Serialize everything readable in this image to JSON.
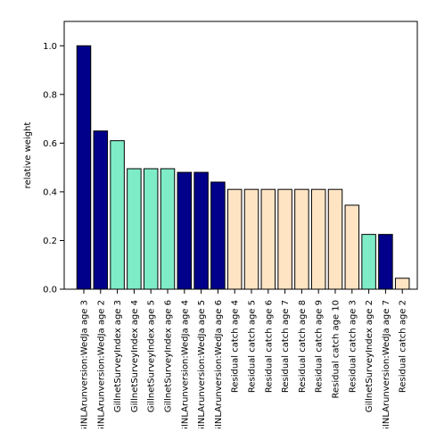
{
  "chart_data": {
    "type": "bar",
    "title": "",
    "xlabel": "",
    "ylabel": "relative weight",
    "ylim": [
      0,
      1.1
    ],
    "yticks": [
      0.0,
      0.2,
      0.4,
      0.6,
      0.8,
      1.0
    ],
    "ytick_labels": [
      "0.0",
      "0.2",
      "0.4",
      "0.6",
      "0.8",
      "1.0"
    ],
    "grid": false,
    "categories": [
      "GINLArunversion:WedJa age 3",
      "GINLArunversion:WedJa age 2",
      "GillnetSurveyIndex age 3",
      "GillnetSurveyIndex age 4",
      "GillnetSurveyIndex age 5",
      "GillnetSurveyIndex age 6",
      "GINLArunversion:WedJa age 4",
      "GINLArunversion:WedJa age 5",
      "GINLArunversion:WedJa age 6",
      "Residual catch age 4",
      "Residual catch age 5",
      "Residual catch age 6",
      "Residual catch age 7",
      "Residual catch age 8",
      "Residual catch age 9",
      "Residual catch age 10",
      "Residual catch age 3",
      "GillnetSurveyIndex age 2",
      "GINLArunversion:WedJa age 7",
      "Residual catch age 2"
    ],
    "values": [
      1.0,
      0.65,
      0.61,
      0.495,
      0.495,
      0.495,
      0.48,
      0.48,
      0.44,
      0.41,
      0.41,
      0.41,
      0.41,
      0.41,
      0.41,
      0.41,
      0.345,
      0.225,
      0.225,
      0.045
    ],
    "groups": [
      "navy",
      "navy",
      "teal",
      "teal",
      "teal",
      "teal",
      "navy",
      "navy",
      "navy",
      "peach",
      "peach",
      "peach",
      "peach",
      "peach",
      "peach",
      "peach",
      "peach",
      "teal",
      "navy",
      "peach"
    ],
    "colors": {
      "navy": "#00008b",
      "teal": "#7fecc8",
      "peach": "#ffe4c4",
      "bar_edge": "#000000"
    }
  }
}
